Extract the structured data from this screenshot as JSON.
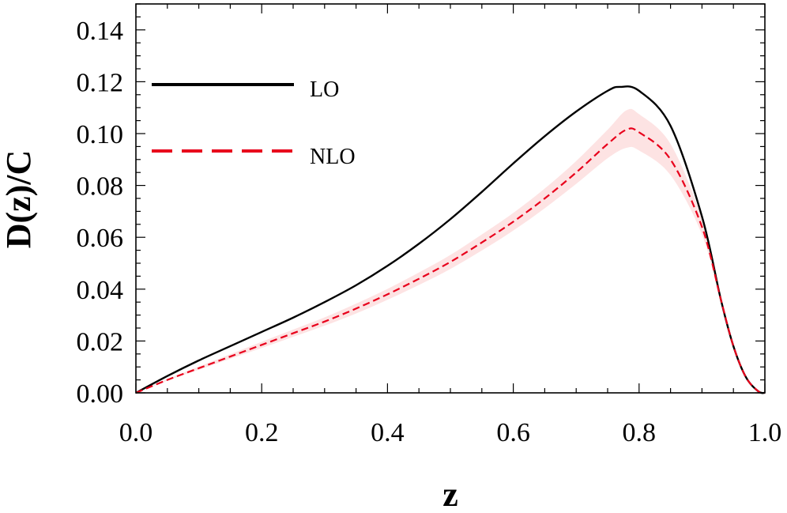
{
  "chart_data": {
    "type": "line",
    "xlabel": "z",
    "ylabel": "D(z)/C",
    "xlim": [
      0.0,
      1.0
    ],
    "ylim": [
      0.0,
      0.15
    ],
    "x_ticks": [
      "0.0",
      "0.2",
      "0.4",
      "0.6",
      "0.8",
      "1.0"
    ],
    "y_ticks": [
      "0.00",
      "0.02",
      "0.04",
      "0.06",
      "0.08",
      "0.10",
      "0.12",
      "0.14"
    ],
    "x_tick_values": [
      0.0,
      0.2,
      0.4,
      0.6,
      0.8,
      1.0
    ],
    "y_tick_values": [
      0.0,
      0.02,
      0.04,
      0.06,
      0.08,
      0.1,
      0.12,
      0.14
    ],
    "legend_position": "upper-left",
    "grid": false,
    "series": [
      {
        "name": "LO",
        "color": "#000000",
        "style": "solid",
        "x": [
          0.0,
          0.05,
          0.1,
          0.15,
          0.2,
          0.25,
          0.3,
          0.35,
          0.4,
          0.45,
          0.5,
          0.55,
          0.6,
          0.65,
          0.7,
          0.75,
          0.77,
          0.8,
          0.85,
          0.9,
          0.93,
          0.95,
          0.97,
          0.99,
          1.0
        ],
        "y": [
          0.0,
          0.0065,
          0.0125,
          0.018,
          0.0235,
          0.029,
          0.035,
          0.0415,
          0.049,
          0.0575,
          0.067,
          0.0775,
          0.0885,
          0.099,
          0.1085,
          0.1165,
          0.118,
          0.1165,
          0.103,
          0.068,
          0.036,
          0.018,
          0.006,
          0.0005,
          0.0
        ]
      },
      {
        "name": "NLO",
        "color": "#e8001b",
        "style": "dashed",
        "x": [
          0.0,
          0.05,
          0.1,
          0.15,
          0.2,
          0.25,
          0.3,
          0.35,
          0.4,
          0.45,
          0.5,
          0.55,
          0.6,
          0.65,
          0.7,
          0.75,
          0.78,
          0.8,
          0.85,
          0.9,
          0.93,
          0.95,
          0.97,
          0.99,
          1.0
        ],
        "y": [
          0.0,
          0.005,
          0.0095,
          0.014,
          0.0185,
          0.023,
          0.0275,
          0.0325,
          0.038,
          0.044,
          0.0505,
          0.058,
          0.066,
          0.075,
          0.085,
          0.096,
          0.1015,
          0.1005,
          0.09,
          0.064,
          0.036,
          0.018,
          0.006,
          0.0005,
          0.0
        ],
        "band_lower": [
          0.0,
          0.0047,
          0.0089,
          0.0131,
          0.0173,
          0.0216,
          0.0259,
          0.0306,
          0.0359,
          0.0416,
          0.0478,
          0.0549,
          0.0626,
          0.0712,
          0.0806,
          0.0905,
          0.0945,
          0.0935,
          0.084,
          0.061,
          0.035,
          0.0177,
          0.0059,
          0.0005,
          0.0
        ],
        "band_upper": [
          0.0,
          0.0053,
          0.0101,
          0.0149,
          0.0197,
          0.0244,
          0.0291,
          0.0344,
          0.0401,
          0.0464,
          0.0532,
          0.0611,
          0.0694,
          0.0788,
          0.0894,
          0.1015,
          0.109,
          0.1075,
          0.096,
          0.067,
          0.037,
          0.0183,
          0.0061,
          0.0005,
          0.0
        ]
      }
    ]
  }
}
